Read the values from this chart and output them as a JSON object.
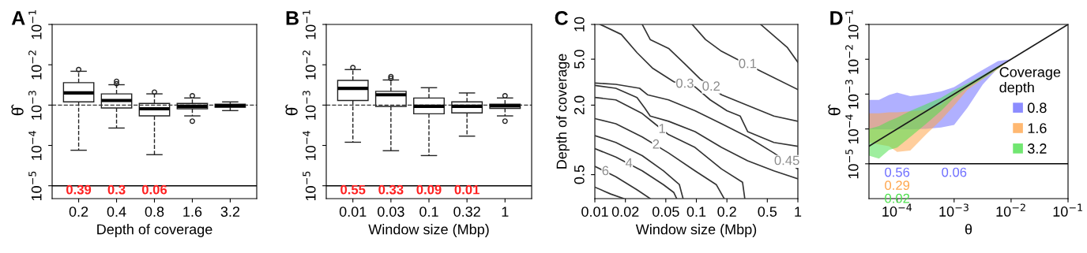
{
  "chart_data": [
    {
      "type": "box",
      "title": "A",
      "xlabel": "Depth of coverage",
      "ylabel": "θ̂",
      "log": "y",
      "categories": [
        "0.2",
        "0.4",
        "0.8",
        "1.6",
        "3.2"
      ],
      "boxes": [
        {
          "low": 7.6e-05,
          "q1": 0.0012,
          "median": 0.002,
          "q3": 0.0036,
          "high": 0.0069,
          "outliers": [
            0.0076
          ]
        },
        {
          "low": 0.00027,
          "q1": 0.00085,
          "median": 0.0013,
          "q3": 0.0019,
          "high": 0.0032,
          "outliers": [
            0.0039,
            0.0034
          ]
        },
        {
          "low": 5.9e-05,
          "q1": 0.00054,
          "median": 0.00081,
          "q3": 0.0011,
          "high": 0.0019,
          "outliers": [
            0.0021
          ]
        },
        {
          "low": 0.00054,
          "q1": 0.00081,
          "median": 0.00093,
          "q3": 0.0011,
          "high": 0.0015,
          "outliers": [
            0.0017,
            0.0004
          ]
        },
        {
          "low": 0.00073,
          "q1": 0.00089,
          "median": 0.00096,
          "q3": 0.00105,
          "high": 0.0012
        }
      ],
      "ylim": [
        4.8e-06,
        0.1
      ],
      "yticks": [
        {
          "value": 1e-05,
          "label": "10$^{−5}$"
        },
        {
          "value": 0.0001,
          "label": "10$^{−4}$"
        },
        {
          "value": 0.001,
          "label": "10$^{−3}$"
        },
        {
          "value": 0.01,
          "label": "10$^{−2}$"
        },
        {
          "value": 0.1,
          "label": "10$^{−1}$"
        }
      ],
      "ref_lines": [
        {
          "axis": "y",
          "value": 0.001,
          "line_style": "dashed",
          "color": "#333333"
        },
        {
          "axis": "y",
          "value": 1e-05,
          "line_style": "solid",
          "color": "#000000"
        }
      ],
      "annotations": [
        "0.39",
        "0.3",
        "0.06"
      ]
    },
    {
      "type": "box",
      "title": "B",
      "xlabel": "Window size (Mbp)",
      "ylabel": "θ̂",
      "log": "y",
      "categories": [
        "0.01",
        "0.03",
        "0.1",
        "0.32",
        "1"
      ],
      "boxes": [
        {
          "low": 0.00012,
          "q1": 0.0013,
          "median": 0.0026,
          "q3": 0.0041,
          "high": 0.0076,
          "outliers": [
            0.0085
          ]
        },
        {
          "low": 7.4e-05,
          "q1": 0.00093,
          "median": 0.0018,
          "q3": 0.0022,
          "high": 0.0042,
          "outliers": [
            0.0051,
            0.0046
          ]
        },
        {
          "low": 5.6e-05,
          "q1": 0.00061,
          "median": 0.00093,
          "q3": 0.0015,
          "high": 0.0027
        },
        {
          "low": 0.00017,
          "q1": 0.00064,
          "median": 0.00093,
          "q3": 0.0012,
          "high": 0.002
        },
        {
          "low": 0.00054,
          "q1": 0.00083,
          "median": 0.00096,
          "q3": 0.00105,
          "high": 0.0015,
          "outliers": [
            0.0017,
            0.0004
          ]
        }
      ],
      "ylim": [
        4.8e-06,
        0.1
      ],
      "yticks": [
        {
          "value": 1e-05,
          "label": "10$^{−5}$"
        },
        {
          "value": 0.0001,
          "label": "10$^{−4}$"
        },
        {
          "value": 0.001,
          "label": "10$^{−3}$"
        },
        {
          "value": 0.01,
          "label": "10$^{−2}$"
        },
        {
          "value": 0.1,
          "label": "10$^{−1}$"
        }
      ],
      "ref_lines": [
        {
          "axis": "y",
          "value": 0.001,
          "line_style": "dashed",
          "color": "#333333"
        },
        {
          "axis": "y",
          "value": 1e-05,
          "line_style": "solid",
          "color": "#000000"
        }
      ],
      "annotations": [
        "0.55",
        "0.33",
        "0.09",
        "0.01"
      ]
    },
    {
      "type": "line",
      "title": "C",
      "xlabel": "Window size (Mbp)",
      "ylabel": "Depth of coverage",
      "log": "xy",
      "xlim": [
        0.01,
        1
      ],
      "ylim": [
        0.31,
        10
      ],
      "xticks": [
        0.01,
        0.02,
        0.05,
        0.1,
        0.2,
        0.5,
        1
      ],
      "yticks": [
        0.5,
        {
          "value": 2,
          "label": "2.0"
        },
        {
          "value": 5,
          "label": "5.0"
        },
        10
      ],
      "series": [
        {
          "color": "#333333",
          "x": [
            0.43,
            0.79,
            1.0
          ],
          "values": [
            10,
            6.3,
            4.7
          ]
        },
        {
          "color": "#333333",
          "x": [
            0.091,
            0.123,
            0.177,
            0.25,
            0.43,
            1.0
          ],
          "values": [
            10,
            7.4,
            5.85,
            5.0,
            3.94,
            2.73
          ]
        },
        {
          "color": "#333333",
          "x": [
            0.0293,
            0.0351,
            0.0533,
            0.076,
            0.109,
            0.177,
            0.32,
            0.58,
            1.0
          ],
          "values": [
            10,
            7.4,
            6.2,
            4.6,
            3.37,
            2.46,
            1.99,
            1.61,
            1.45
          ]
        },
        {
          "color": "#333333",
          "x": [
            0.0113,
            0.0182,
            0.026,
            0.0373,
            0.06,
            0.097,
            0.137,
            0.2,
            0.27,
            0.32,
            0.58,
            1.0
          ],
          "values": [
            10,
            8.2,
            5.7,
            4.16,
            3.19,
            2.88,
            2.22,
            1.79,
            1.61,
            1.18,
            0.95,
            0.88
          ]
        },
        {
          "color": "#333333",
          "x": [
            0.01,
            0.0161,
            0.0276,
            0.033,
            0.0533,
            0.097,
            0.177,
            0.32,
            0.58,
            1.0
          ],
          "values": [
            3.11,
            3.03,
            2.8,
            2.46,
            2.22,
            1.79,
            1.38,
            1.06,
            0.77,
            0.56
          ]
        },
        {
          "color": "#333333",
          "x": [
            0.01,
            0.0161,
            0.026,
            0.031,
            0.0351,
            0.0533,
            0.097,
            0.177,
            0.32,
            0.58,
            1.0
          ],
          "values": [
            2.96,
            2.8,
            2.33,
            1.89,
            1.61,
            1.45,
            1.18,
            0.86,
            0.66,
            0.54,
            0.46
          ]
        },
        {
          "color": "#333333",
          "x": [
            0.01,
            0.0161,
            0.0293,
            0.039,
            0.0533,
            0.097,
            0.177,
            0.285,
            0.3
          ],
          "values": [
            2.33,
            2.22,
            1.69,
            1.38,
            1.11,
            0.86,
            0.56,
            0.43,
            0.31
          ]
        },
        {
          "color": "#333333",
          "x": [
            0.01,
            0.0161,
            0.0293,
            0.0533,
            0.097,
            0.157,
            0.188
          ],
          "values": [
            1.53,
            1.38,
            1.06,
            0.77,
            0.54,
            0.41,
            0.31
          ]
        },
        {
          "color": "#333333",
          "x": [
            0.01,
            0.0161,
            0.0293,
            0.0473,
            0.068,
            0.074
          ],
          "values": [
            1.09,
            0.95,
            0.73,
            0.54,
            0.41,
            0.31
          ]
        },
        {
          "color": "#333333",
          "x": [
            0.01,
            0.0161,
            0.0293,
            0.0473,
            0.06,
            0.064
          ],
          "values": [
            0.84,
            0.71,
            0.54,
            0.41,
            0.35,
            0.31
          ]
        },
        {
          "color": "#333333",
          "x": [
            0.01,
            0.0161,
            0.026,
            0.0351
          ],
          "values": [
            0.59,
            0.48,
            0.37,
            0.31
          ]
        },
        {
          "color": "#333333",
          "x": [
            0.01,
            0.0143,
            0.0193
          ],
          "values": [
            0.39,
            0.34,
            0.31
          ]
        }
      ],
      "annotations": [
        {
          "text": "0.1",
          "x": 0.32,
          "y": 4.49
        },
        {
          "text": "0.2",
          "x": 0.14,
          "y": 2.86
        },
        {
          "text": "0.3",
          "x": 0.077,
          "y": 3.03
        },
        {
          "text": "0.45",
          "x": 0.78,
          "y": 0.65
        },
        {
          "text": "1",
          "x": 0.046,
          "y": 1.23
        },
        {
          "text": "2",
          "x": 0.04,
          "y": 0.9
        },
        {
          "text": "4",
          "x": 0.0217,
          "y": 0.62
        },
        {
          "text": "6",
          "x": 0.0127,
          "y": 0.53
        }
      ]
    },
    {
      "type": "line",
      "title": "D",
      "xlabel": "θ",
      "ylabel": "θ̂",
      "log": "xy",
      "legend": "right",
      "legend_title": "Coverage\ndepth",
      "xlim": [
        3.2e-05,
        0.1
      ],
      "ylim": [
        1e-06,
        0.1
      ],
      "xticks": [
        {
          "value": 0.0001,
          "label": "10$^{−4}$"
        },
        {
          "value": 0.001,
          "label": "10$^{−3}$"
        },
        {
          "value": 0.01,
          "label": "10$^{−2}$"
        },
        {
          "value": 0.1,
          "label": "10$^{−1}$"
        }
      ],
      "yticks": [
        {
          "value": 1e-05,
          "label": "10$^{−5}$"
        },
        {
          "value": 0.0001,
          "label": "10$^{−4}$"
        },
        {
          "value": 0.001,
          "label": "10$^{−3}$"
        },
        {
          "value": 0.01,
          "label": "10$^{−2}$"
        },
        {
          "value": 0.1,
          "label": "10$^{−1}$"
        }
      ],
      "series": [
        {
          "type": "line",
          "name": "0.8",
          "color": "#6f6fff",
          "x": [
            3.2e-05,
            4.8e-05,
            7.2e-05,
            0.0001,
            0.00017,
            0.00032,
            0.00059,
            0.001,
            0.0017,
            0.0032,
            0.0059,
            0.01
          ],
          "values": [
            null,
            null,
            null,
            null,
            null,
            null,
            null,
            null,
            null,
            null,
            null,
            null
          ],
          "lower": [
            9.8e-05,
            9.8e-05,
            9.8e-05,
            9.8e-05,
            9.8e-05,
            0.0001,
            0.00011,
            0.00013,
            0.0004,
            0.0019,
            0.0056,
            0.01
          ],
          "upper": [
            0.00068,
            0.00068,
            0.00095,
            0.0011,
            0.00087,
            0.001,
            0.0012,
            0.0016,
            0.0027,
            0.005,
            0.0089,
            0.01
          ]
        },
        {
          "type": "line",
          "name": "1.6",
          "color": "#ffa64d",
          "x": [
            3.2e-05,
            4.8e-05,
            7.2e-05,
            0.0001,
            0.00017,
            0.00032,
            0.00059,
            0.001,
            0.0017,
            0.0032,
            0.0059,
            0.01
          ],
          "values": [
            null,
            null,
            null,
            null,
            null,
            null,
            null,
            null,
            null,
            null,
            null,
            null
          ],
          "lower": [
            4.1e-05,
            3.6e-05,
            3.2e-05,
            2.2e-05,
            2.4e-05,
            6.9e-05,
            0.00018,
            0.00047,
            0.0013,
            0.0027,
            0.0052,
            0.01
          ],
          "upper": [
            0.00028,
            0.00028,
            0.0003,
            0.0003,
            0.00032,
            0.00035,
            0.0005,
            0.0011,
            0.0018,
            0.0033,
            0.006,
            0.01
          ]
        },
        {
          "type": "line",
          "name": "3.2",
          "color": "#4ee04e",
          "x": [
            3.2e-05,
            4.8e-05,
            7.2e-05,
            0.0001,
            0.00017,
            0.00032,
            0.00059,
            0.001,
            0.0017,
            0.0032,
            0.0059,
            0.01
          ],
          "values": [
            null,
            null,
            null,
            null,
            null,
            null,
            null,
            null,
            null,
            null,
            null,
            null
          ],
          "lower": [
            1.7e-05,
            1.4e-05,
            2.5e-05,
            2.9e-05,
            5.9e-05,
            0.00014,
            0.00033,
            0.00079,
            0.0015,
            0.0028,
            0.0054,
            0.01
          ],
          "upper": [
            0.0001,
            0.00012,
            0.00017,
            0.00021,
            0.00033,
            0.00051,
            0.00079,
            0.0013,
            0.002,
            0.0035,
            0.0063,
            0.01
          ]
        },
        {
          "type": "line",
          "color": "#1a1a1a",
          "x": [
            3.2e-05,
            0.1
          ],
          "values": [
            3.2e-05,
            0.1
          ]
        }
      ],
      "ref_lines": [
        {
          "axis": "y",
          "value": 1e-05,
          "line_style": "solid",
          "color": "#000000"
        }
      ],
      "annotations": [
        "0.56",
        "0.06",
        "0.29",
        "0.02"
      ]
    }
  ]
}
